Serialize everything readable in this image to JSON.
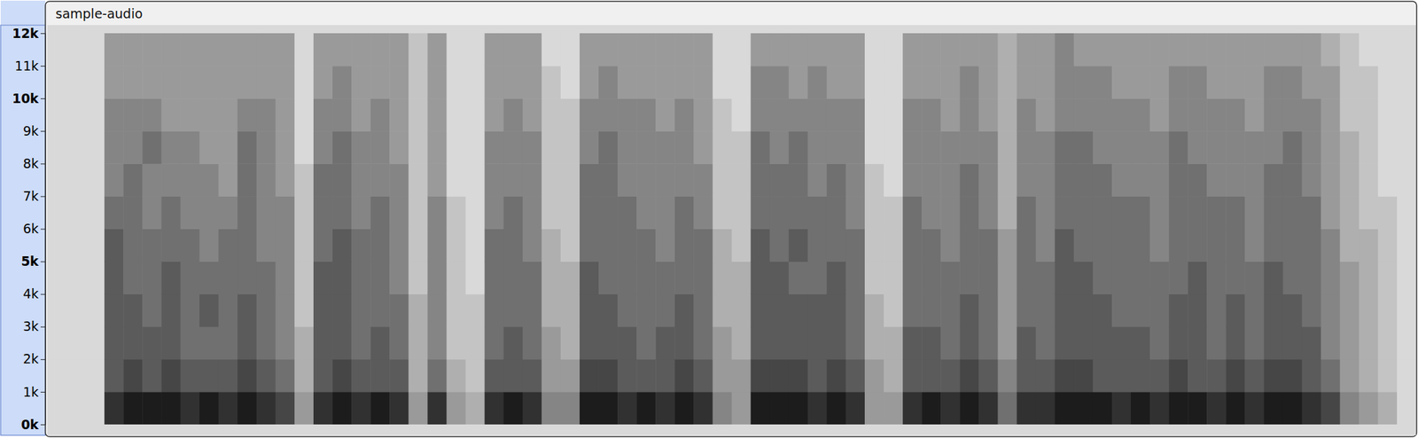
{
  "chart_data": {
    "type": "heatmap",
    "title": "sample-audio",
    "xlim": [
      0,
      72
    ],
    "ylim": [
      0,
      12000
    ],
    "yticks": [
      {
        "value": 0,
        "label": "0k"
      },
      {
        "value": 1000,
        "label": "1k"
      },
      {
        "value": 2000,
        "label": "2k"
      },
      {
        "value": 3000,
        "label": "3k"
      },
      {
        "value": 4000,
        "label": "4k"
      },
      {
        "value": 5000,
        "label": "5k"
      },
      {
        "value": 6000,
        "label": "6k"
      },
      {
        "value": 7000,
        "label": "7k"
      },
      {
        "value": 8000,
        "label": "8k"
      },
      {
        "value": 9000,
        "label": "9k"
      },
      {
        "value": 10000,
        "label": "10k"
      },
      {
        "value": 11000,
        "label": "11k"
      },
      {
        "value": 12000,
        "label": "12k"
      }
    ],
    "y_bins": [
      0,
      1000,
      2000,
      3000,
      4000,
      5000,
      6000,
      7000,
      8000,
      9000,
      10000,
      11000,
      12000
    ],
    "zlim": [
      0,
      9
    ],
    "color": "#1c1c1c",
    "tick_labels": "y",
    "cells": [
      [
        0,
        0,
        0,
        0,
        0,
        0,
        0,
        0,
        0,
        0,
        0,
        0
      ],
      [
        0,
        0,
        0,
        0,
        0,
        0,
        0,
        0,
        0,
        0,
        0,
        0
      ],
      [
        0,
        0,
        0,
        0,
        0,
        0,
        0,
        0,
        0,
        0,
        0,
        0
      ],
      [
        8,
        6,
        6,
        6,
        6,
        6,
        5,
        4,
        4,
        4,
        3,
        3
      ],
      [
        9,
        7,
        6,
        6,
        5,
        5,
        5,
        5,
        4,
        4,
        3,
        3
      ],
      [
        9,
        6,
        6,
        5,
        5,
        5,
        4,
        4,
        5,
        4,
        3,
        3
      ],
      [
        9,
        7,
        6,
        6,
        6,
        5,
        5,
        4,
        4,
        3,
        3,
        3
      ],
      [
        8,
        6,
        5,
        5,
        5,
        5,
        4,
        4,
        4,
        3,
        3,
        3
      ],
      [
        9,
        6,
        5,
        6,
        5,
        4,
        4,
        4,
        3,
        3,
        3,
        3
      ],
      [
        8,
        6,
        5,
        5,
        5,
        5,
        4,
        3,
        3,
        3,
        3,
        3
      ],
      [
        9,
        7,
        6,
        6,
        5,
        5,
        5,
        5,
        5,
        4,
        3,
        3
      ],
      [
        8,
        6,
        5,
        5,
        5,
        4,
        4,
        4,
        4,
        4,
        3,
        3
      ],
      [
        7,
        5,
        4,
        4,
        4,
        4,
        4,
        3,
        3,
        3,
        3,
        3
      ],
      [
        3,
        2,
        2,
        1,
        1,
        1,
        1,
        1,
        0,
        0,
        0,
        0
      ],
      [
        8,
        6,
        6,
        6,
        6,
        5,
        5,
        5,
        4,
        4,
        3,
        3
      ],
      [
        9,
        7,
        6,
        6,
        6,
        6,
        5,
        5,
        5,
        4,
        4,
        3
      ],
      [
        8,
        6,
        5,
        5,
        5,
        5,
        4,
        4,
        4,
        3,
        3,
        3
      ],
      [
        9,
        6,
        6,
        5,
        5,
        5,
        5,
        4,
        4,
        4,
        3,
        3
      ],
      [
        8,
        6,
        5,
        5,
        4,
        4,
        4,
        4,
        3,
        3,
        3,
        3
      ],
      [
        3,
        2,
        2,
        2,
        1,
        1,
        1,
        1,
        1,
        1,
        1,
        1
      ],
      [
        8,
        5,
        4,
        4,
        4,
        4,
        4,
        3,
        3,
        3,
        3,
        3
      ],
      [
        3,
        2,
        1,
        1,
        1,
        1,
        1,
        0,
        0,
        0,
        0,
        0
      ],
      [
        2,
        1,
        1,
        1,
        0,
        0,
        0,
        0,
        0,
        0,
        0,
        0
      ],
      [
        8,
        6,
        5,
        5,
        5,
        5,
        4,
        4,
        4,
        3,
        3,
        3
      ],
      [
        9,
        6,
        6,
        5,
        5,
        5,
        5,
        4,
        4,
        4,
        3,
        3
      ],
      [
        8,
        6,
        5,
        5,
        5,
        4,
        4,
        4,
        4,
        3,
        3,
        3
      ],
      [
        4,
        3,
        3,
        2,
        2,
        2,
        1,
        1,
        1,
        1,
        1,
        0
      ],
      [
        4,
        3,
        2,
        2,
        2,
        1,
        1,
        1,
        1,
        1,
        0,
        0
      ],
      [
        9,
        7,
        6,
        6,
        6,
        5,
        5,
        5,
        4,
        4,
        3,
        3
      ],
      [
        9,
        7,
        6,
        6,
        5,
        5,
        5,
        5,
        5,
        4,
        4,
        3
      ],
      [
        8,
        6,
        6,
        5,
        5,
        5,
        5,
        4,
        4,
        4,
        3,
        3
      ],
      [
        9,
        6,
        5,
        5,
        5,
        5,
        4,
        4,
        4,
        4,
        3,
        3
      ],
      [
        8,
        6,
        6,
        5,
        5,
        4,
        4,
        4,
        4,
        3,
        3,
        3
      ],
      [
        9,
        7,
        6,
        6,
        5,
        5,
        5,
        4,
        4,
        4,
        3,
        3
      ],
      [
        8,
        6,
        5,
        5,
        5,
        5,
        4,
        4,
        3,
        3,
        3,
        3
      ],
      [
        4,
        3,
        3,
        2,
        2,
        2,
        1,
        1,
        1,
        1,
        0,
        0
      ],
      [
        3,
        3,
        2,
        2,
        2,
        1,
        1,
        1,
        1,
        0,
        0,
        0
      ],
      [
        9,
        7,
        6,
        6,
        6,
        6,
        5,
        5,
        5,
        4,
        4,
        3
      ],
      [
        9,
        7,
        6,
        6,
        6,
        5,
        5,
        5,
        4,
        4,
        4,
        3
      ],
      [
        9,
        7,
        6,
        6,
        5,
        6,
        5,
        5,
        5,
        4,
        3,
        3
      ],
      [
        8,
        6,
        6,
        6,
        5,
        5,
        5,
        4,
        4,
        4,
        4,
        3
      ],
      [
        9,
        7,
        6,
        6,
        6,
        5,
        5,
        5,
        4,
        4,
        3,
        3
      ],
      [
        8,
        6,
        5,
        5,
        5,
        5,
        4,
        4,
        4,
        4,
        3,
        3
      ],
      [
        3,
        3,
        2,
        2,
        1,
        1,
        1,
        1,
        0,
        0,
        0,
        0
      ],
      [
        3,
        2,
        2,
        1,
        1,
        1,
        1,
        0,
        0,
        0,
        0,
        0
      ],
      [
        8,
        6,
        6,
        5,
        5,
        5,
        5,
        4,
        4,
        4,
        3,
        3
      ],
      [
        9,
        6,
        6,
        5,
        5,
        5,
        4,
        4,
        4,
        4,
        3,
        3
      ],
      [
        8,
        6,
        5,
        5,
        5,
        4,
        4,
        4,
        4,
        3,
        3,
        3
      ],
      [
        9,
        7,
        6,
        6,
        5,
        5,
        5,
        5,
        4,
        4,
        4,
        3
      ],
      [
        8,
        6,
        5,
        5,
        5,
        5,
        4,
        4,
        4,
        3,
        3,
        3
      ],
      [
        5,
        4,
        3,
        3,
        3,
        3,
        2,
        2,
        2,
        2,
        2,
        2
      ],
      [
        8,
        6,
        6,
        5,
        5,
        5,
        5,
        4,
        4,
        4,
        3,
        3
      ],
      [
        8,
        6,
        5,
        5,
        5,
        4,
        4,
        4,
        4,
        3,
        3,
        3
      ],
      [
        9,
        7,
        6,
        6,
        6,
        6,
        5,
        5,
        5,
        4,
        4,
        4
      ],
      [
        9,
        7,
        6,
        6,
        6,
        5,
        5,
        5,
        5,
        4,
        4,
        3
      ],
      [
        9,
        6,
        6,
        6,
        5,
        5,
        5,
        5,
        4,
        4,
        4,
        3
      ],
      [
        8,
        6,
        6,
        5,
        5,
        5,
        5,
        4,
        4,
        4,
        3,
        3
      ],
      [
        9,
        6,
        6,
        5,
        5,
        5,
        5,
        4,
        4,
        4,
        3,
        3
      ],
      [
        8,
        6,
        5,
        5,
        5,
        4,
        4,
        4,
        4,
        3,
        3,
        3
      ],
      [
        9,
        7,
        6,
        6,
        5,
        5,
        5,
        5,
        5,
        4,
        4,
        3
      ],
      [
        9,
        6,
        6,
        6,
        6,
        5,
        5,
        5,
        4,
        4,
        4,
        3
      ],
      [
        8,
        6,
        5,
        5,
        5,
        5,
        5,
        4,
        4,
        4,
        3,
        3
      ],
      [
        9,
        7,
        6,
        6,
        5,
        5,
        5,
        4,
        4,
        4,
        3,
        3
      ],
      [
        8,
        6,
        5,
        5,
        5,
        4,
        4,
        4,
        4,
        3,
        3,
        3
      ],
      [
        9,
        7,
        6,
        6,
        6,
        5,
        5,
        5,
        4,
        4,
        4,
        3
      ],
      [
        9,
        7,
        6,
        6,
        5,
        5,
        5,
        5,
        5,
        4,
        4,
        3
      ],
      [
        8,
        6,
        6,
        5,
        5,
        5,
        5,
        4,
        4,
        4,
        3,
        3
      ],
      [
        7,
        5,
        4,
        4,
        4,
        4,
        3,
        3,
        3,
        3,
        3,
        2
      ],
      [
        4,
        3,
        3,
        3,
        3,
        2,
        2,
        2,
        2,
        1,
        1,
        1
      ],
      [
        3,
        2,
        2,
        2,
        2,
        2,
        1,
        1,
        1,
        1,
        1,
        0
      ],
      [
        2,
        1,
        1,
        1,
        1,
        1,
        1,
        0,
        0,
        0,
        0,
        0
      ],
      [
        0,
        0,
        0,
        0,
        0,
        0,
        0,
        0,
        0,
        0,
        0,
        0
      ]
    ]
  }
}
